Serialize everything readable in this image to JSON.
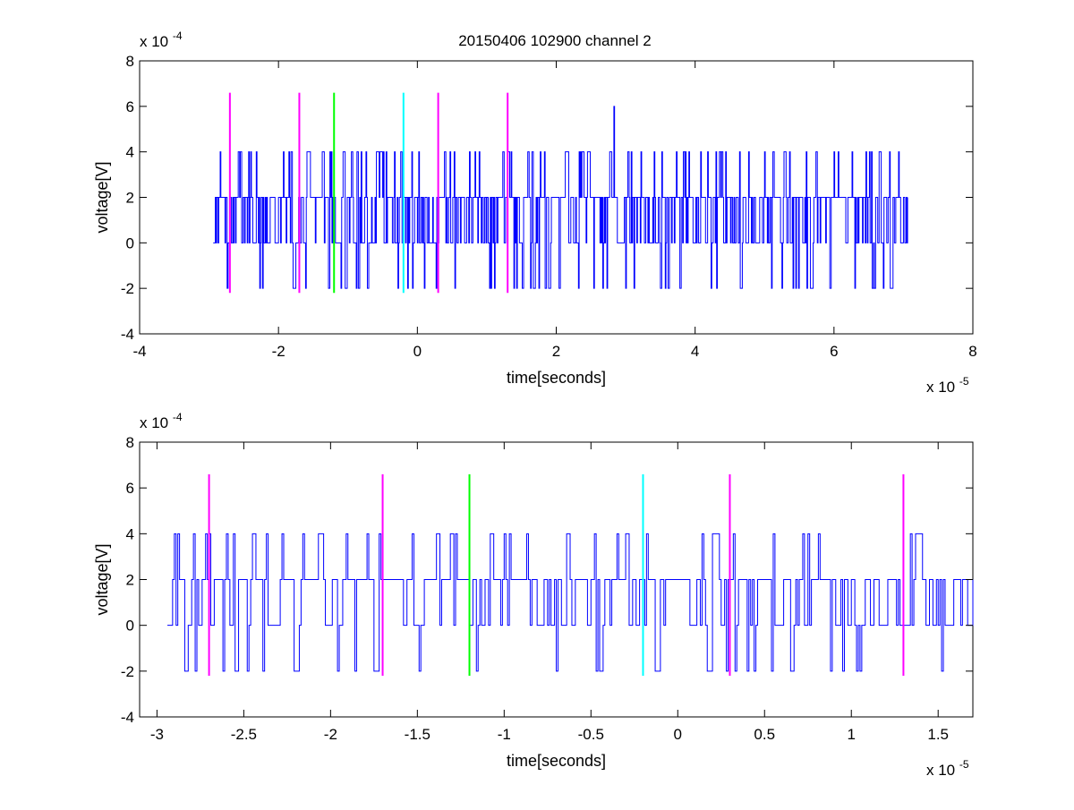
{
  "figure_title": "20150406 102900 channel 2",
  "chart_data": [
    {
      "type": "line",
      "title": "20150406 102900 channel 2",
      "xlabel": "time[seconds]",
      "ylabel": "voltage[V]",
      "x_exponent_label": "x 10",
      "x_exponent": "-5",
      "y_exponent_label": "x 10",
      "y_exponent": "-4",
      "xlim": [
        -4e-05,
        8e-05
      ],
      "ylim": [
        -0.0004,
        0.0008
      ],
      "xticks": [
        -4e-05,
        -2e-05,
        0,
        2e-05,
        4e-05,
        6e-05,
        8e-05
      ],
      "xtick_labels": [
        "-4",
        "-2",
        "0",
        "2",
        "4",
        "6",
        "8"
      ],
      "yticks": [
        -0.0004,
        -0.0002,
        0,
        0.0002,
        0.0004,
        0.0006,
        0.0008
      ],
      "ytick_labels": [
        "-4",
        "-2",
        "0",
        "2",
        "4",
        "6",
        "8"
      ],
      "grid": false,
      "signal": {
        "color": "#0000ff",
        "x_start": -2.94e-05,
        "x_end": 7.06e-05,
        "step": 1e-07,
        "levels": [
          -0.0002,
          0,
          0.0002,
          0.0004,
          0.0006
        ],
        "mean_level": 0.0002,
        "peak": {
          "x": 2.83e-05,
          "y": 0.0006
        }
      },
      "markers": [
        {
          "x": -2.7e-05,
          "y_range": [
            -0.00022,
            0.00066
          ],
          "color": "#ff00ff"
        },
        {
          "x": -1.7e-05,
          "y_range": [
            -0.00022,
            0.00066
          ],
          "color": "#ff00ff"
        },
        {
          "x": -1.2e-05,
          "y_range": [
            -0.00022,
            0.00066
          ],
          "color": "#00ff00"
        },
        {
          "x": -2e-06,
          "y_range": [
            -0.00022,
            0.00066
          ],
          "color": "#00ffff"
        },
        {
          "x": 3e-06,
          "y_range": [
            -0.00022,
            0.00066
          ],
          "color": "#ff00ff"
        },
        {
          "x": 1.3e-05,
          "y_range": [
            -0.00022,
            0.00066
          ],
          "color": "#ff00ff"
        }
      ]
    },
    {
      "type": "line",
      "title": "",
      "xlabel": "time[seconds]",
      "ylabel": "voltage[V]",
      "x_exponent_label": "x 10",
      "x_exponent": "-5",
      "y_exponent_label": "x 10",
      "y_exponent": "-4",
      "xlim": [
        -3.1e-05,
        1.7e-05
      ],
      "ylim": [
        -0.0004,
        0.0008
      ],
      "xticks": [
        -3e-05,
        -2.5e-05,
        -2e-05,
        -1.5e-05,
        -1e-05,
        -5e-06,
        0,
        5e-06,
        1e-05,
        1.5e-05
      ],
      "xtick_labels": [
        "-3",
        "-2.5",
        "-2",
        "-1.5",
        "-1",
        "-0.5",
        "0",
        "0.5",
        "1",
        "1.5"
      ],
      "yticks": [
        -0.0004,
        -0.0002,
        0,
        0.0002,
        0.0004,
        0.0006,
        0.0008
      ],
      "ytick_labels": [
        "-4",
        "-2",
        "0",
        "2",
        "4",
        "6",
        "8"
      ],
      "grid": false,
      "signal": {
        "color": "#0000ff",
        "x_start": -2.94e-05,
        "x_end": 1.7e-05,
        "step": 1e-07,
        "levels": [
          -0.0002,
          0,
          0.0002,
          0.0004,
          0.0006
        ],
        "mean_level": 0.0002
      },
      "markers": [
        {
          "x": -2.7e-05,
          "y_range": [
            -0.00022,
            0.00066
          ],
          "color": "#ff00ff"
        },
        {
          "x": -1.7e-05,
          "y_range": [
            -0.00022,
            0.00066
          ],
          "color": "#ff00ff"
        },
        {
          "x": -1.2e-05,
          "y_range": [
            -0.00022,
            0.00066
          ],
          "color": "#00ff00"
        },
        {
          "x": -2e-06,
          "y_range": [
            -0.00022,
            0.00066
          ],
          "color": "#00ffff"
        },
        {
          "x": 3e-06,
          "y_range": [
            -0.00022,
            0.00066
          ],
          "color": "#ff00ff"
        },
        {
          "x": 1.3e-05,
          "y_range": [
            -0.00022,
            0.00066
          ],
          "color": "#ff00ff"
        }
      ]
    }
  ]
}
